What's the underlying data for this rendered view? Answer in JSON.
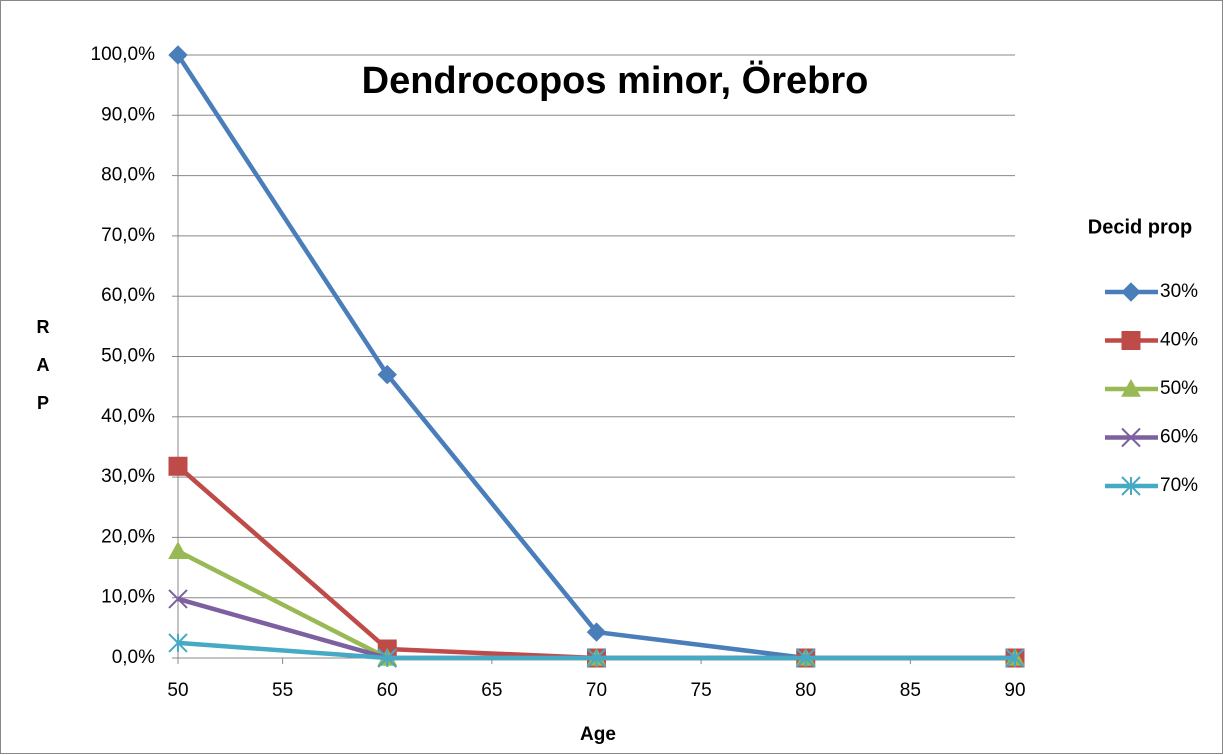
{
  "chart_data": {
    "type": "line",
    "title": "Dendrocopos minor, Örebro",
    "x_label": "Age",
    "y_label": "RAP",
    "legend_title": "Decid prop",
    "legend": "right",
    "x": [
      50,
      60,
      70,
      80,
      90
    ],
    "series": [
      {
        "name": "30%",
        "color": "#4a7ebb",
        "marker": "diamond",
        "values": [
          100,
          47,
          4.3,
          0,
          0
        ]
      },
      {
        "name": "40%",
        "color": "#be4b48",
        "marker": "square",
        "values": [
          31.8,
          1.5,
          0,
          0,
          0
        ]
      },
      {
        "name": "50%",
        "color": "#98b954",
        "marker": "triangle",
        "values": [
          17.7,
          0,
          0,
          0,
          0
        ]
      },
      {
        "name": "60%",
        "color": "#7d60a0",
        "marker": "x",
        "values": [
          9.8,
          0,
          0,
          0,
          0
        ]
      },
      {
        "name": "70%",
        "color": "#46aac5",
        "marker": "star",
        "values": [
          2.5,
          0,
          0,
          0,
          0
        ]
      }
    ],
    "xlim": [
      50,
      90
    ],
    "xticks": [
      50,
      55,
      60,
      65,
      70,
      75,
      80,
      85,
      90
    ],
    "ylim": [
      0,
      100
    ],
    "yticks": [
      {
        "value": 0,
        "label": "0,0%"
      },
      {
        "value": 10,
        "label": "10,0%"
      },
      {
        "value": 20,
        "label": "20,0%"
      },
      {
        "value": 30,
        "label": "30,0%"
      },
      {
        "value": 40,
        "label": "40,0%"
      },
      {
        "value": 50,
        "label": "50,0%"
      },
      {
        "value": 60,
        "label": "60,0%"
      },
      {
        "value": 70,
        "label": "70,0%"
      },
      {
        "value": 80,
        "label": "80,0%"
      },
      {
        "value": 90,
        "label": "90,0%"
      },
      {
        "value": 100,
        "label": "100,0%"
      }
    ],
    "grid": true
  }
}
